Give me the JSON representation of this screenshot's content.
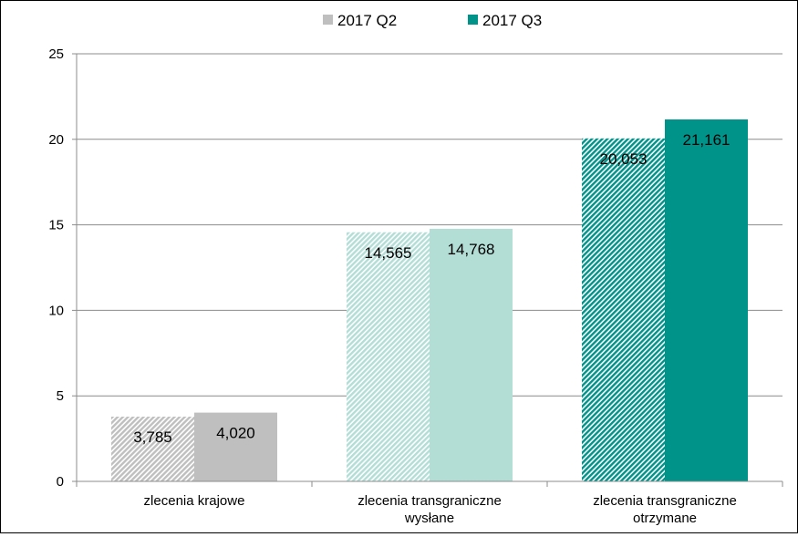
{
  "chart_data": {
    "type": "bar",
    "categories": [
      [
        "zlecenia krajowe"
      ],
      [
        "zlecenia transgraniczne",
        "wysłane"
      ],
      [
        "zlecenia transgraniczne",
        "otrzymane"
      ]
    ],
    "series": [
      {
        "name": "2017 Q2",
        "values": [
          3.785,
          14.565,
          20.053
        ],
        "labels": [
          "3,785",
          "14,565",
          "20,053"
        ],
        "pattern": "hatched"
      },
      {
        "name": "2017 Q3",
        "values": [
          4.02,
          14.768,
          21.161
        ],
        "labels": [
          "4,020",
          "14,768",
          "21,161"
        ],
        "pattern": "solid"
      }
    ],
    "category_colors": [
      "#bfbfbf",
      "#b3ded6",
      "#00938a"
    ],
    "legend_colors": [
      "#bfbfbf",
      "#00938a"
    ],
    "ylim": [
      0,
      25
    ],
    "yticks": [
      "0",
      "5",
      "10",
      "15",
      "20",
      "25"
    ],
    "grid": true,
    "legend_position": "top"
  }
}
